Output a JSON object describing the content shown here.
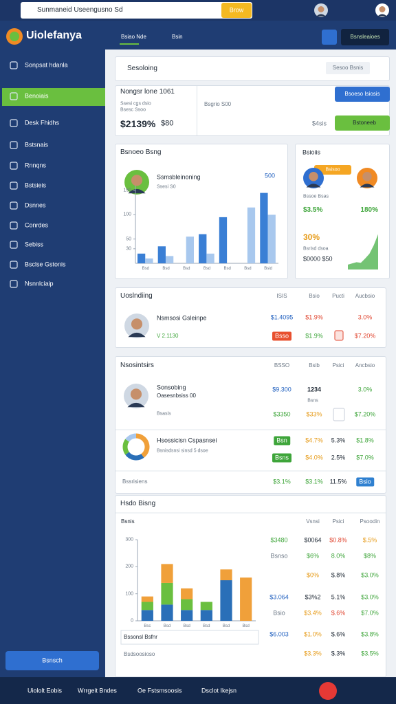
{
  "topbar": {
    "search": "Sunmaneid Useengusno Sd",
    "button": "Brow"
  },
  "header": {
    "brand": "Uiolefanya",
    "tabs": [
      "Bsiao Nde",
      "Bsin"
    ],
    "action": "Bsnsleaioes"
  },
  "sidebar": {
    "items": [
      "Sonpsat hdanla",
      "Benoiais",
      "Desk Fhidhs",
      "Bstsnais",
      "Rnnqns",
      "Bstsieis",
      "Dsnnes",
      "Conrdes",
      "Sebiss",
      "Bsclse Gstonis",
      "Nsnnlciaip"
    ],
    "button": "Bsnsch"
  },
  "search_panel": {
    "title": "Sesoloing",
    "tag": "Sesoo Bsnis"
  },
  "stats": {
    "title": "Nongsr lone 1061",
    "line1": "Ssesi cgs dsio",
    "line2": "Bsesc Ssoo",
    "middle": "Bsgrio S00",
    "amount": "$2139%",
    "small": "$80",
    "right": "$4sis",
    "primary": "Bsoeso Isiosis",
    "secondary": "Bstoneeb"
  },
  "activity": {
    "title": "Bsnoeo Bsng",
    "name": "Ssmsbleinoning",
    "sub": "Ssesi S0",
    "figure": "500",
    "chart": {
      "type": "bar",
      "categories": [
        "Bsd",
        "Bsd",
        "Bsd",
        "Bsd",
        "Bsd",
        "Bsd",
        "Bsid"
      ],
      "series": [
        {
          "color": "#3a7fd5",
          "values": [
            20,
            35,
            0,
            60,
            95,
            0,
            145
          ]
        },
        {
          "color": "#a8c8ee",
          "values": [
            10,
            15,
            55,
            20,
            0,
            115,
            100
          ]
        }
      ],
      "ylim": [
        0,
        160
      ],
      "yticks": [
        30,
        50,
        100,
        150
      ]
    }
  },
  "profiles": {
    "title": "Bsioiis",
    "badge": "Bsisoo",
    "caption": "Bssoe Bsas",
    "left": "$3.5%",
    "right": "180%",
    "big": "30%",
    "label": "Bsrisd dsoa",
    "value": "$0000 $50",
    "chart": {
      "type": "area",
      "values": [
        8,
        10,
        12,
        11,
        18,
        26,
        40,
        58
      ],
      "ylim": [
        0,
        70
      ],
      "color": "#5cb85c"
    }
  },
  "recent": {
    "title": "Uoslndiing",
    "columns": [
      "ISIS",
      "Bsio",
      "Pucti",
      "Aucbsio"
    ],
    "name": "Nsmsosi Gsleinpe",
    "sub": "V 2.1130",
    "rows": [
      [
        "$1.4095",
        "$1.9%",
        null,
        "3.0%"
      ],
      [
        "Bsso",
        "$1.9%",
        null,
        "$7.20%"
      ]
    ]
  },
  "members": {
    "title": "Nsosintsirs",
    "columns": [
      "BSSO",
      "Bsib",
      "Psici",
      "Ancbsio"
    ],
    "first": {
      "name": "Sonsobing",
      "detail": "Oasesnbsiss 00",
      "note": "Bsasis",
      "under": "Bsns",
      "rows": [
        [
          "$9.300",
          "1234",
          null,
          "3.0%"
        ],
        [
          "$3350",
          "$33%",
          null,
          "$7.20%"
        ]
      ]
    },
    "second": {
      "name": "Hsossicisn Cspasnsei",
      "detail": "Bsnisdsnsi sinsd 5 dsoe",
      "chart": {
        "type": "pie",
        "values": [
          40,
          25,
          20,
          15
        ],
        "colors": [
          "#f0a03a",
          "#2a6fb8",
          "#6abf3f",
          "#a8c8ee"
        ]
      },
      "rows": [
        [
          "Bsn",
          "$4.7%",
          "5.3%",
          "$1.8%"
        ],
        [
          "Bsns",
          "$4.0%",
          "2.5%",
          "$7.0%"
        ]
      ]
    },
    "third": {
      "name": "Bssrisiens",
      "rows": [
        [
          "$3.1%",
          "$3.1%",
          "11.5%",
          "Bsio"
        ]
      ]
    }
  },
  "history": {
    "title": "Hsdo Bisng",
    "columns": [
      "Bsnis",
      "Vsnsi",
      "Psici",
      "Psoodin"
    ],
    "chart": {
      "type": "bar",
      "stacked": true,
      "categories": [
        "Bsc",
        "Bsd",
        "Bsd",
        "Bsd",
        "Bsd",
        "Bsd"
      ],
      "series": [
        {
          "color": "#2a6fb8",
          "values": [
            40,
            60,
            40,
            40,
            150,
            0
          ]
        },
        {
          "color": "#6abf3f",
          "values": [
            30,
            80,
            40,
            30,
            0,
            0
          ]
        },
        {
          "color": "#f0a03a",
          "values": [
            20,
            70,
            40,
            0,
            40,
            160
          ]
        }
      ],
      "ylim": [
        0,
        300
      ],
      "yticks": [
        0,
        100,
        200,
        300
      ]
    },
    "rows": [
      [
        "$3480",
        "$0064",
        "$0.8%",
        "$.5%"
      ],
      [
        "Bsnso",
        "$6%",
        "8.0%",
        "$8%"
      ],
      [
        null,
        "$0%",
        "$.8%",
        "$3.0%"
      ],
      [
        "$3.064",
        "$3%2",
        "5.1%",
        "$3.0%"
      ],
      [
        "Bsio",
        "$3.4%",
        "$.6%",
        "$7.0%"
      ],
      [
        "$6.003",
        "$1.0%",
        "$.6%",
        "$3.8%"
      ],
      [
        null,
        "$3.3%",
        "$.3%",
        "$3.5%"
      ]
    ],
    "filter": "Bssonsl Bsfnr",
    "footer": "Bsdsoosioso"
  },
  "bottom_bar": [
    "Uiololt Eobis",
    "Wrrgeit Bndes",
    "Oe Fstsmsoosis",
    "Dsclot Ikejsn"
  ]
}
